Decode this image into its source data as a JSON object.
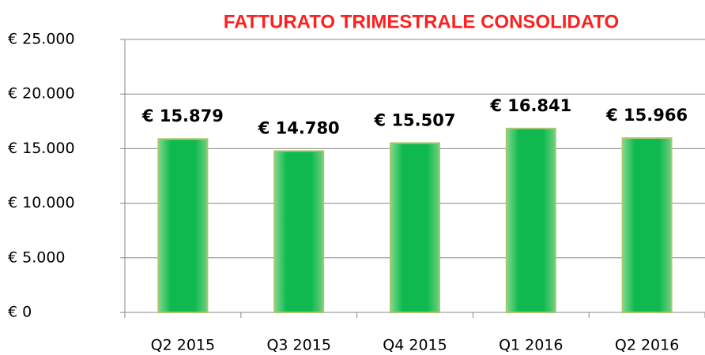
{
  "chart_data": {
    "type": "bar",
    "title": "FATTURATO TRIMESTRALE CONSOLIDATO",
    "categories": [
      "Q2 2015",
      "Q3 2015",
      "Q4 2015",
      "Q1 2016",
      "Q2 2016"
    ],
    "values": [
      15879,
      14780,
      15507,
      16841,
      15966
    ],
    "value_labels": [
      "€ 15.879",
      "€ 14.780",
      "€ 15.507",
      "€ 16.841",
      "€ 15.966"
    ],
    "color": "#0fb94f",
    "ylim": [
      0,
      25000
    ],
    "yticks": [
      {
        "value": 0,
        "label": "€ 0"
      },
      {
        "value": 5000,
        "label": "€ 5.000"
      },
      {
        "value": 10000,
        "label": "€ 10.000"
      },
      {
        "value": 15000,
        "label": "€ 15.000"
      },
      {
        "value": 20000,
        "label": "€ 20.000"
      },
      {
        "value": 25000,
        "label": "€ 25.000"
      }
    ],
    "grid": true
  }
}
